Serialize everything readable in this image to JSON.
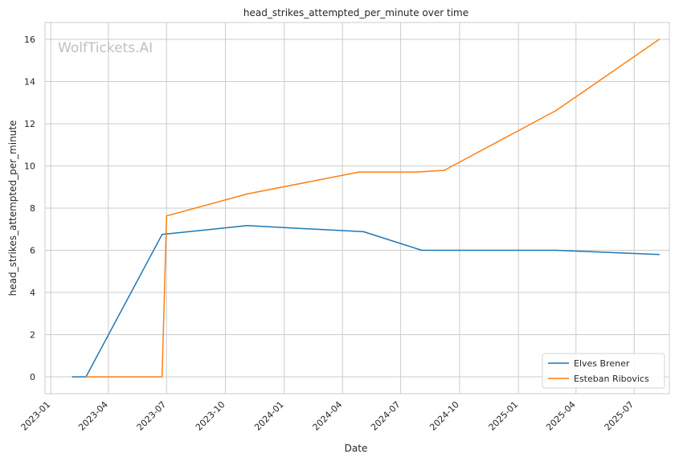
{
  "chart_data": {
    "type": "line",
    "title": "head_strikes_attempted_per_minute over time",
    "xlabel": "Date",
    "ylabel": "head_strikes_attempted_per_minute",
    "watermark": "WolfTickets.AI",
    "x_ticks": [
      "2023-01",
      "2023-04",
      "2023-07",
      "2023-10",
      "2024-01",
      "2024-04",
      "2024-07",
      "2024-10",
      "2025-01",
      "2025-04",
      "2025-07"
    ],
    "y_ticks": [
      "0",
      "2",
      "4",
      "6",
      "8",
      "10",
      "12",
      "14",
      "16"
    ],
    "xlim": [
      "2022-12-23",
      "2025-08-25"
    ],
    "ylim": [
      -0.8,
      16.8
    ],
    "grid": true,
    "legend_position": "lower-right",
    "series": [
      {
        "name": "Elves Brener",
        "color": "#1f77b4",
        "points": [
          {
            "x": "2023-02-04",
            "y": 0
          },
          {
            "x": "2023-02-25",
            "y": 0
          },
          {
            "x": "2023-06-24",
            "y": 6.75
          },
          {
            "x": "2023-11-04",
            "y": 7.17
          },
          {
            "x": "2024-05-04",
            "y": 6.88
          },
          {
            "x": "2024-08-03",
            "y": 6.0
          },
          {
            "x": "2025-03-01",
            "y": 6.0
          },
          {
            "x": "2025-08-09",
            "y": 5.8
          }
        ]
      },
      {
        "name": "Esteban Ribovics",
        "color": "#ff7f0e",
        "points": [
          {
            "x": "2023-02-25",
            "y": 0
          },
          {
            "x": "2023-06-24",
            "y": 0
          },
          {
            "x": "2023-07-01",
            "y": 7.63
          },
          {
            "x": "2023-11-04",
            "y": 8.67
          },
          {
            "x": "2024-04-27",
            "y": 9.71
          },
          {
            "x": "2024-07-27",
            "y": 9.71
          },
          {
            "x": "2024-09-07",
            "y": 9.79
          },
          {
            "x": "2025-03-01",
            "y": 12.63
          },
          {
            "x": "2025-08-09",
            "y": 16.0
          }
        ]
      }
    ]
  }
}
